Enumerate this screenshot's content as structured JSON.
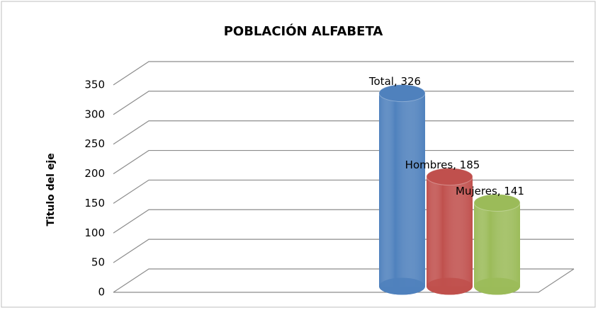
{
  "chart_data": {
    "type": "cylinder3d",
    "title": "POBLACIÓN ALFABETA",
    "y_label": "Titulo del eje",
    "categories": [
      null,
      null
    ],
    "series": [
      {
        "name": "Total",
        "color": "#4f81bd",
        "values": [
          null,
          326
        ],
        "value_labels": [
          null,
          "Total, 326"
        ]
      },
      {
        "name": "Hombres",
        "color": "#c0504d",
        "values": [
          null,
          185
        ],
        "value_labels": [
          null,
          "Hombres, 185"
        ]
      },
      {
        "name": "Mujeres",
        "color": "#9bbb59",
        "values": [
          null,
          141
        ],
        "value_labels": [
          null,
          "Mujeres, 141"
        ]
      }
    ],
    "ylim": [
      0,
      350
    ],
    "yticks": [
      0,
      50,
      100,
      150,
      200,
      250,
      300,
      350
    ],
    "grid": true
  }
}
